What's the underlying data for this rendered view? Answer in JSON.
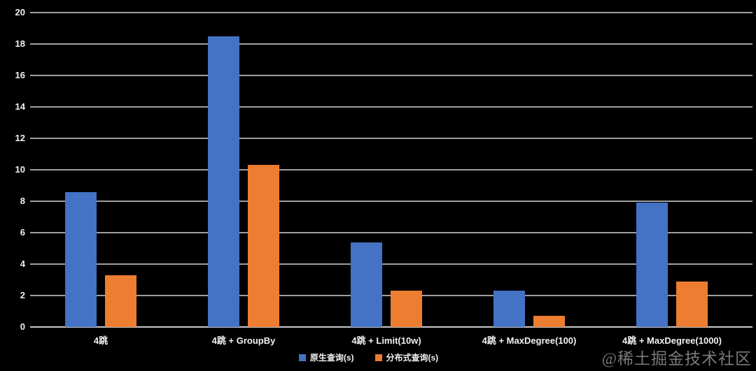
{
  "chart_data": {
    "type": "bar",
    "title": "",
    "xlabel": "",
    "ylabel": "",
    "categories": [
      "4跳",
      "4跳 + GroupBy",
      "4跳 + Limit(10w)",
      "4跳 + MaxDegree(100)",
      "4跳 + MaxDegree(1000)"
    ],
    "series": [
      {
        "name": "原生查询(s)",
        "color": "#4472c4",
        "values": [
          8.6,
          18.5,
          5.4,
          2.3,
          7.9
        ]
      },
      {
        "name": "分布式查询(s)",
        "color": "#ed7d31",
        "values": [
          3.3,
          10.3,
          2.3,
          0.7,
          2.9
        ]
      }
    ],
    "ylim": [
      0,
      20
    ],
    "ytick_step": 2,
    "yticks": [
      0,
      2,
      4,
      6,
      8,
      10,
      12,
      14,
      16,
      18,
      20
    ],
    "grid": true,
    "legend_position": "bottom",
    "background_color": "#000000",
    "gridline_color": "#9f9f9f",
    "axis_line_color": "#c9c9c9",
    "text_color": "#f2f2f2"
  },
  "watermark": {
    "text": "@稀土掘金技术社区"
  }
}
